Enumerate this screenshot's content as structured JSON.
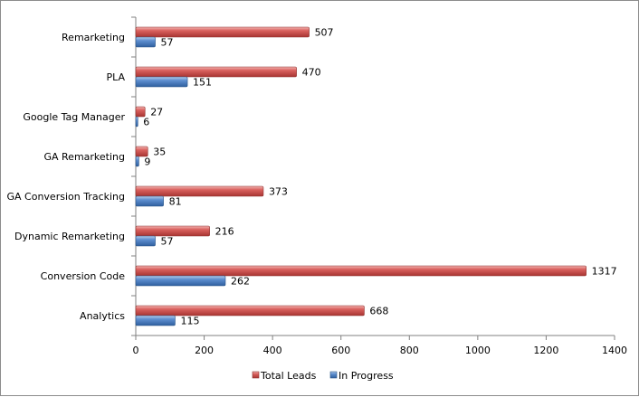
{
  "chart_data": {
    "type": "bar",
    "orientation": "horizontal",
    "categories": [
      "Remarketing",
      "PLA",
      "Google Tag Manager",
      "GA Remarketing",
      "GA Conversion Tracking",
      "Dynamic Remarketing",
      "Conversion Code",
      "Analytics"
    ],
    "series": [
      {
        "name": "Total Leads",
        "values": [
          507,
          470,
          27,
          35,
          373,
          216,
          1317,
          668
        ],
        "color": "#c0504d"
      },
      {
        "name": "In Progress",
        "values": [
          57,
          151,
          6,
          9,
          81,
          57,
          262,
          115
        ],
        "color": "#4f81bd"
      }
    ],
    "xlim": [
      0,
      1400
    ],
    "xticks": [
      "0",
      "200",
      "400",
      "600",
      "800",
      "1000",
      "1200",
      "1400"
    ],
    "grid": false,
    "legend_position": "bottom"
  }
}
